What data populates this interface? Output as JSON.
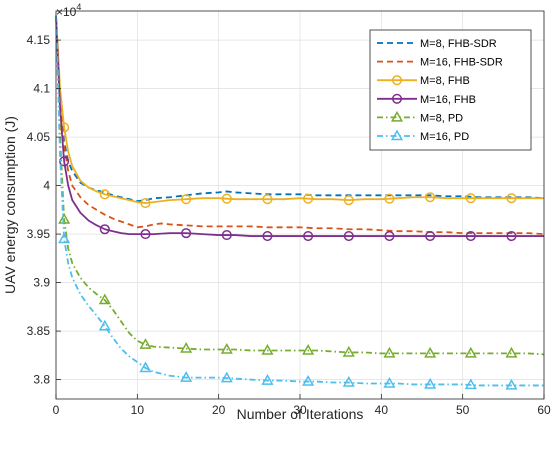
{
  "chart_data": {
    "type": "line",
    "xlabel": "Number of Iterations",
    "ylabel": "UAV energy consumption (J)",
    "y_exponent_base": "×10",
    "y_exponent_power": "4",
    "xlim": [
      0,
      60
    ],
    "ylim": [
      3.78,
      4.18
    ],
    "x_ticks": [
      0,
      10,
      20,
      30,
      40,
      50,
      60
    ],
    "x_tick_labels": [
      "0",
      "10",
      "20",
      "30",
      "40",
      "50",
      "60"
    ],
    "y_ticks": [
      3.8,
      3.85,
      3.9,
      3.95,
      4.0,
      4.05,
      4.1,
      4.15
    ],
    "y_tick_labels": [
      "3.8",
      "3.85",
      "3.9",
      "3.95",
      "4",
      "4.05",
      "4.1",
      "4.15"
    ],
    "grid": true,
    "legend_position": "top-right",
    "colors": {
      "blue": "#0072BD",
      "orange": "#D95319",
      "yellow": "#EDB120",
      "purple": "#7E2F8E",
      "green": "#77AC30",
      "cyan": "#4DBEEE"
    },
    "series": [
      {
        "name": "M=8, FHB-SDR",
        "color": "#0072BD",
        "dash": "dashed",
        "marker": "none",
        "x": [
          0,
          0.5,
          1,
          1.5,
          2,
          3,
          4,
          5,
          6,
          7,
          8,
          9,
          10,
          11,
          12,
          14,
          16,
          18,
          20,
          21,
          22,
          24,
          26,
          28,
          30,
          32,
          34,
          36,
          38,
          40,
          42,
          44,
          46,
          48,
          50,
          52,
          54,
          56,
          58,
          60
        ],
        "y": [
          4.175,
          4.09,
          4.045,
          4.025,
          4.015,
          4.003,
          3.998,
          3.995,
          3.993,
          3.99,
          3.988,
          3.986,
          3.984,
          3.985,
          3.987,
          3.988,
          3.99,
          3.992,
          3.993,
          3.994,
          3.993,
          3.992,
          3.991,
          3.991,
          3.991,
          3.99,
          3.99,
          3.99,
          3.99,
          3.99,
          3.99,
          3.99,
          3.99,
          3.989,
          3.989,
          3.988,
          3.988,
          3.988,
          3.988,
          3.987
        ]
      },
      {
        "name": "M=16, FHB-SDR",
        "color": "#D95319",
        "dash": "dashed",
        "marker": "none",
        "x": [
          0,
          0.5,
          1,
          1.5,
          2,
          3,
          4,
          5,
          6,
          7,
          8,
          9,
          10,
          11,
          12,
          13,
          14,
          16,
          18,
          20,
          22,
          24,
          26,
          28,
          30,
          32,
          34,
          36,
          38,
          40,
          42,
          44,
          46,
          48,
          50,
          52,
          54,
          56,
          58,
          60
        ],
        "y": [
          4.175,
          4.09,
          4.04,
          4.015,
          4.0,
          3.988,
          3.98,
          3.975,
          3.97,
          3.966,
          3.963,
          3.96,
          3.957,
          3.958,
          3.96,
          3.961,
          3.96,
          3.959,
          3.958,
          3.958,
          3.958,
          3.958,
          3.957,
          3.957,
          3.957,
          3.956,
          3.956,
          3.955,
          3.955,
          3.954,
          3.953,
          3.953,
          3.952,
          3.952,
          3.951,
          3.951,
          3.951,
          3.951,
          3.951,
          3.95
        ]
      },
      {
        "name": "M=8, FHB",
        "color": "#EDB120",
        "dash": "solid",
        "marker": "circle",
        "x": [
          0,
          0.5,
          1,
          1.5,
          2,
          3,
          4,
          5,
          6,
          7,
          8,
          9,
          10,
          11,
          12,
          14,
          16,
          18,
          20,
          22,
          24,
          26,
          28,
          30,
          32,
          34,
          36,
          38,
          40,
          42,
          44,
          46,
          48,
          50,
          52,
          54,
          56,
          58,
          60
        ],
        "y": [
          4.175,
          4.1,
          4.06,
          4.035,
          4.02,
          4.005,
          3.998,
          3.994,
          3.991,
          3.989,
          3.987,
          3.985,
          3.983,
          3.982,
          3.983,
          3.985,
          3.986,
          3.987,
          3.987,
          3.986,
          3.986,
          3.986,
          3.986,
          3.987,
          3.986,
          3.986,
          3.985,
          3.986,
          3.986,
          3.987,
          3.988,
          3.988,
          3.987,
          3.987,
          3.987,
          3.987,
          3.987,
          3.987,
          3.987
        ],
        "markers_x": [
          1,
          6,
          11,
          16,
          21,
          26,
          31,
          36,
          41,
          46,
          51,
          56
        ]
      },
      {
        "name": "M=16, FHB",
        "color": "#7E2F8E",
        "dash": "solid",
        "marker": "circle",
        "x": [
          0,
          0.5,
          1,
          1.5,
          2,
          3,
          4,
          5,
          6,
          7,
          8,
          9,
          10,
          11,
          12,
          14,
          16,
          18,
          20,
          22,
          24,
          26,
          28,
          30,
          32,
          34,
          36,
          38,
          40,
          42,
          44,
          46,
          48,
          50,
          52,
          54,
          56,
          58,
          60
        ],
        "y": [
          4.175,
          4.08,
          4.025,
          4.0,
          3.985,
          3.972,
          3.964,
          3.959,
          3.955,
          3.953,
          3.951,
          3.95,
          3.95,
          3.95,
          3.95,
          3.951,
          3.951,
          3.95,
          3.949,
          3.949,
          3.948,
          3.948,
          3.948,
          3.948,
          3.948,
          3.948,
          3.948,
          3.948,
          3.948,
          3.948,
          3.948,
          3.948,
          3.948,
          3.948,
          3.948,
          3.948,
          3.948,
          3.948,
          3.948
        ],
        "markers_x": [
          1,
          6,
          11,
          16,
          21,
          26,
          31,
          36,
          41,
          46,
          51,
          56
        ]
      },
      {
        "name": "M=8, PD",
        "color": "#77AC30",
        "dash": "dashdot",
        "marker": "triangle",
        "x": [
          0,
          0.5,
          1,
          1.5,
          2,
          3,
          4,
          5,
          6,
          7,
          8,
          9,
          10,
          11,
          12,
          14,
          16,
          18,
          20,
          22,
          24,
          26,
          28,
          30,
          32,
          34,
          36,
          38,
          40,
          42,
          44,
          46,
          48,
          50,
          52,
          54,
          56,
          58,
          60
        ],
        "y": [
          4.175,
          4.05,
          3.965,
          3.935,
          3.92,
          3.905,
          3.895,
          3.888,
          3.882,
          3.872,
          3.86,
          3.848,
          3.84,
          3.836,
          3.834,
          3.833,
          3.832,
          3.831,
          3.831,
          3.831,
          3.83,
          3.83,
          3.83,
          3.83,
          3.83,
          3.829,
          3.828,
          3.828,
          3.827,
          3.827,
          3.827,
          3.827,
          3.827,
          3.827,
          3.827,
          3.827,
          3.827,
          3.827,
          3.826
        ],
        "markers_x": [
          1,
          6,
          11,
          16,
          21,
          26,
          31,
          36,
          41,
          46,
          51,
          56
        ]
      },
      {
        "name": "M=16, PD",
        "color": "#4DBEEE",
        "dash": "dashdot",
        "marker": "triangle",
        "x": [
          0,
          0.5,
          1,
          1.5,
          2,
          3,
          4,
          5,
          6,
          7,
          8,
          9,
          10,
          11,
          12,
          14,
          16,
          18,
          20,
          22,
          24,
          26,
          28,
          30,
          32,
          34,
          36,
          38,
          40,
          42,
          44,
          46,
          48,
          50,
          52,
          54,
          56,
          58,
          60
        ],
        "y": [
          4.175,
          4.03,
          3.945,
          3.92,
          3.905,
          3.888,
          3.876,
          3.866,
          3.855,
          3.843,
          3.832,
          3.824,
          3.818,
          3.812,
          3.808,
          3.804,
          3.802,
          3.802,
          3.802,
          3.801,
          3.8,
          3.799,
          3.799,
          3.798,
          3.798,
          3.797,
          3.797,
          3.796,
          3.796,
          3.796,
          3.795,
          3.795,
          3.795,
          3.795,
          3.794,
          3.794,
          3.794,
          3.794,
          3.794
        ],
        "markers_x": [
          1,
          6,
          11,
          16,
          21,
          26,
          31,
          36,
          41,
          46,
          51,
          56
        ]
      }
    ]
  }
}
